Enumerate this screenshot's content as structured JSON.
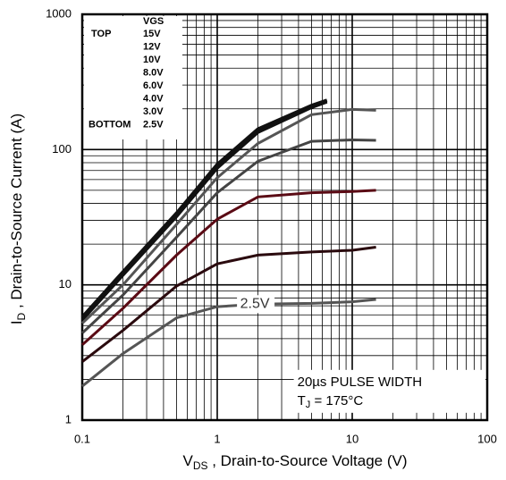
{
  "chart_data": {
    "type": "line",
    "x_label": {
      "main": "V",
      "sub": "DS",
      "rest": " , Drain-to-Source Voltage (V)"
    },
    "y_label": {
      "main": "I",
      "sub": "D",
      "rest": " , Drain-to-Source Current (A)"
    },
    "log_x": true,
    "log_y": true,
    "grid": true,
    "xlim": [
      0.1,
      100
    ],
    "xticks": [
      0.1,
      1,
      10,
      100
    ],
    "ylim": [
      1,
      1000
    ],
    "yticks": [
      1,
      10,
      100,
      1000
    ],
    "legend_title": "VGS",
    "legend_top": "TOP",
    "legend_bottom": "BOTTOM",
    "legend_corner": "top-left",
    "series": [
      {
        "name": "15V",
        "color": "#111111",
        "x": [
          0.1,
          0.2,
          0.5,
          1,
          2,
          5,
          6.5
        ],
        "values": [
          5.8,
          12.5,
          34,
          78,
          142,
          212,
          232
        ]
      },
      {
        "name": "12V",
        "color": "#111111",
        "x": [
          0.1,
          0.2,
          0.5,
          1,
          2,
          5,
          6.5
        ],
        "values": [
          5.7,
          12.3,
          33,
          76,
          139,
          210,
          230
        ]
      },
      {
        "name": "10V",
        "color": "#111111",
        "x": [
          0.1,
          0.2,
          0.5,
          1,
          2,
          5,
          6.5
        ],
        "values": [
          5.5,
          11.8,
          32,
          73,
          134,
          205,
          225
        ]
      },
      {
        "name": "8.0V",
        "color": "#555555",
        "x": [
          0.1,
          0.2,
          0.5,
          1,
          2,
          5,
          10,
          15
        ],
        "values": [
          5.2,
          10,
          28,
          62,
          111,
          181,
          198,
          195
        ]
      },
      {
        "name": "6.0V",
        "color": "#444444",
        "x": [
          0.1,
          0.2,
          0.5,
          1,
          2,
          5,
          10,
          15
        ],
        "values": [
          4.4,
          8.4,
          22.5,
          48,
          82,
          115,
          118,
          117
        ]
      },
      {
        "name": "4.0V",
        "color": "#5a0a14",
        "x": [
          0.1,
          0.2,
          0.5,
          1,
          2,
          5,
          10,
          15
        ],
        "values": [
          3.6,
          6.7,
          16.6,
          30.6,
          44.7,
          48,
          49,
          50
        ]
      },
      {
        "name": "3.0V",
        "color": "#2a0a0e",
        "x": [
          0.1,
          0.2,
          0.5,
          1,
          2,
          5,
          10,
          15
        ],
        "values": [
          2.7,
          4.6,
          9.8,
          14.3,
          16.6,
          17.5,
          18,
          19
        ]
      },
      {
        "name": "2.5V",
        "color": "#555555",
        "x": [
          0.1,
          0.2,
          0.5,
          1,
          2,
          5,
          10,
          15
        ],
        "values": [
          1.78,
          3.1,
          5.7,
          6.9,
          7.2,
          7.3,
          7.5,
          7.8
        ]
      }
    ],
    "annotations": [
      {
        "text": "2.5V",
        "x": 1.9,
        "y": 7.2
      },
      {
        "text": "20µs PULSE WIDTH",
        "x": 7,
        "y": 1.9
      }
    ],
    "temp_note": {
      "main": "T",
      "sub": "J",
      "rest": " = 175°C"
    }
  }
}
